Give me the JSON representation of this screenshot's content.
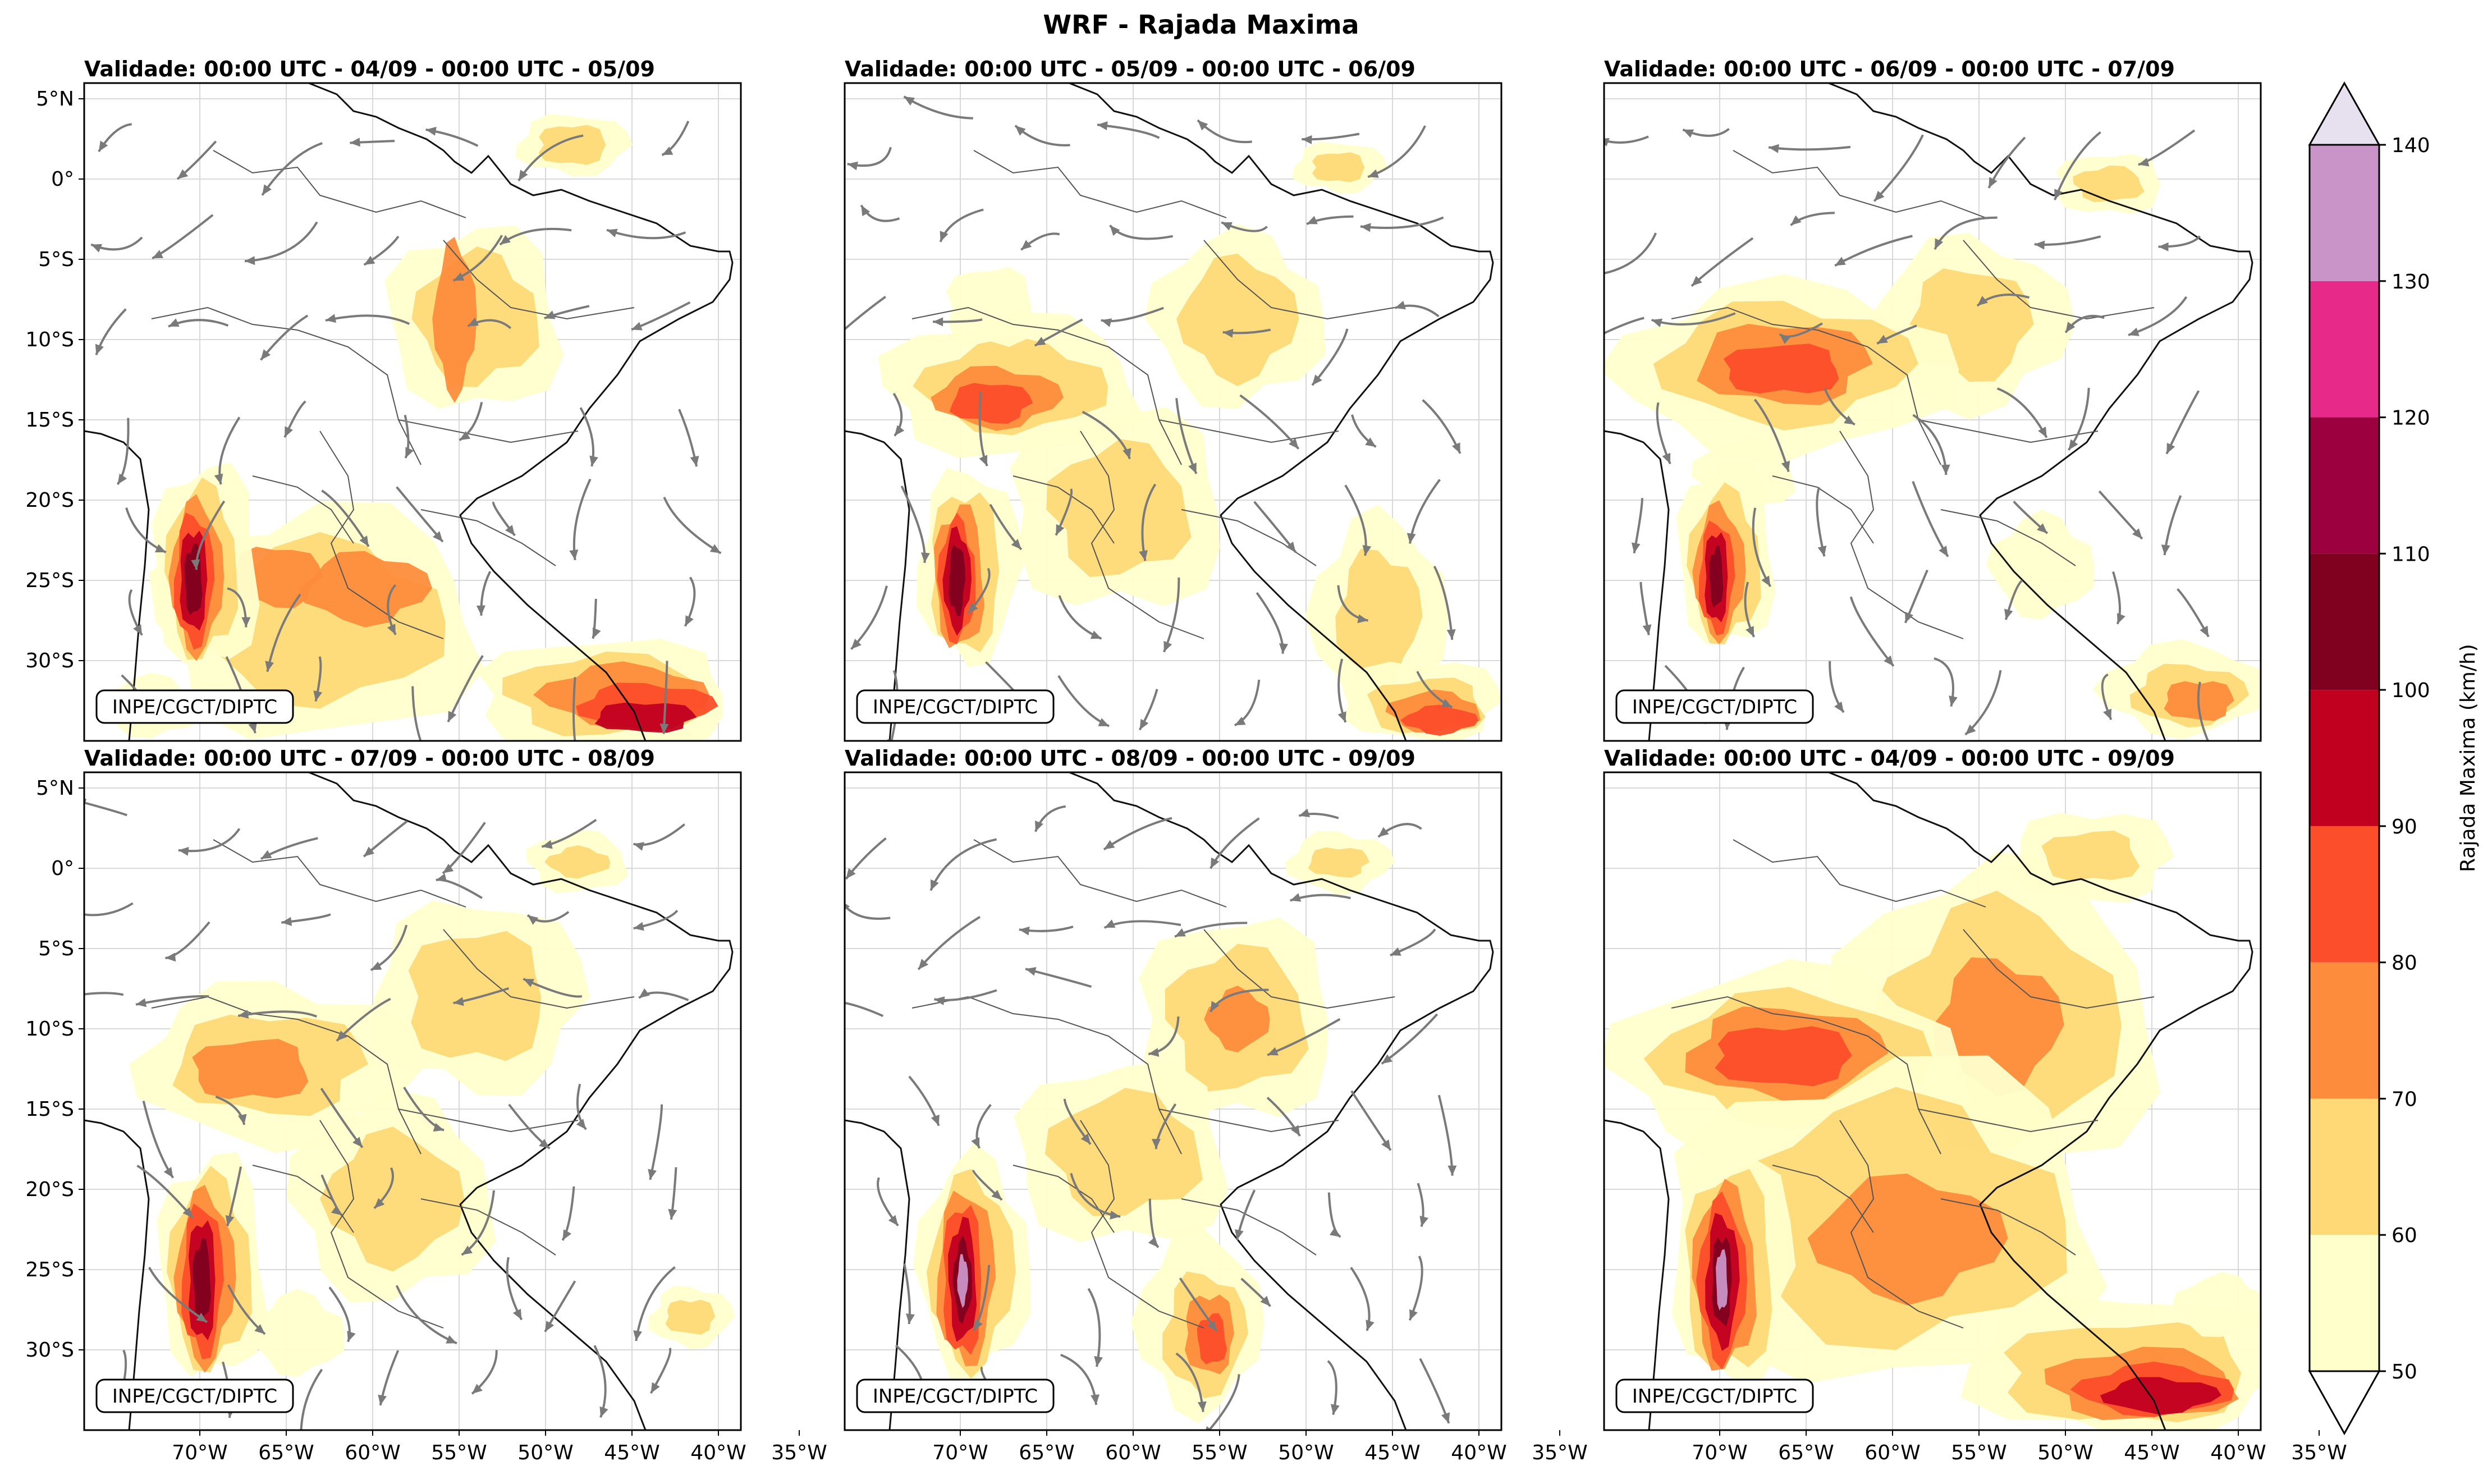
{
  "figure": {
    "title": "WRF - Rajada Maxima"
  },
  "panels": [
    {
      "id": "p1",
      "title": "Validade: 00:00 UTC - 04/09 - 00:00 UTC - 05/09",
      "credit": "INPE/CGCT/DIPTC"
    },
    {
      "id": "p2",
      "title": "Validade: 00:00 UTC - 05/09 - 00:00 UTC - 06/09",
      "credit": "INPE/CGCT/DIPTC"
    },
    {
      "id": "p3",
      "title": "Validade: 00:00 UTC - 06/09 - 00:00 UTC - 07/09",
      "credit": "INPE/CGCT/DIPTC"
    },
    {
      "id": "p4",
      "title": "Validade: 00:00 UTC - 07/09 - 00:00 UTC - 08/09",
      "credit": "INPE/CGCT/DIPTC"
    },
    {
      "id": "p5",
      "title": "Validade: 00:00 UTC - 08/09 - 00:00 UTC - 09/09",
      "credit": "INPE/CGCT/DIPTC"
    },
    {
      "id": "p6",
      "title": "Validade: 00:00 UTC - 04/09 - 00:00 UTC - 09/09",
      "credit": "INPE/CGCT/DIPTC"
    }
  ],
  "axes": {
    "lat_ticks": [
      "5°N",
      "0°",
      "5°S",
      "10°S",
      "15°S",
      "20°S",
      "25°S",
      "30°S"
    ],
    "lon_ticks": [
      "70°W",
      "65°W",
      "60°W",
      "55°W",
      "50°W",
      "45°W",
      "40°W",
      "35°W"
    ]
  },
  "colorbar": {
    "label": "Rajada Maxima (km/h)",
    "ticks": [
      "50",
      "60",
      "70",
      "80",
      "90",
      "100",
      "110",
      "120",
      "130",
      "140"
    ],
    "colors": [
      "#ffffcc",
      "#fed976",
      "#fd8d3c",
      "#fc4e2a",
      "#c10020",
      "#80001f",
      "#9c003e",
      "#e7298a",
      "#c994c7",
      "#e7e1ef"
    ]
  }
}
